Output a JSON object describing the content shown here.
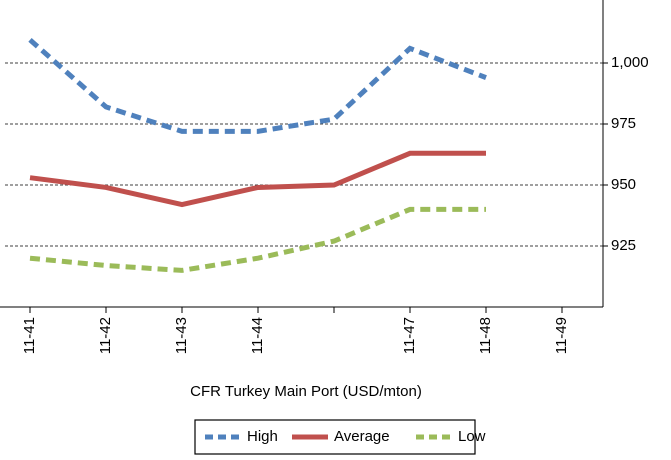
{
  "chart_data": {
    "type": "line",
    "x_label": "CFR Turkey Main Port (USD/mton)",
    "categories": [
      "11-41",
      "11-42",
      "11-43",
      "11-44",
      null,
      "11-47",
      "11-48",
      "11-49"
    ],
    "series": [
      {
        "name": "High",
        "color": "#4f81bd",
        "dashed": true,
        "values": [
          1009.5,
          982,
          972,
          972,
          977,
          1006,
          994,
          null
        ]
      },
      {
        "name": "Average",
        "color": "#c0504d",
        "dashed": false,
        "values": [
          953,
          949,
          942,
          949,
          950,
          963,
          963,
          null
        ]
      },
      {
        "name": "Low",
        "color": "#9bbb59",
        "dashed": true,
        "values": [
          920,
          917,
          915,
          920,
          927,
          940,
          940,
          null
        ]
      }
    ],
    "ylim": [
      900,
      1025
    ],
    "yticks": [
      925,
      950,
      975,
      {
        "value": 1000,
        "label": "1,000"
      }
    ],
    "grid": true,
    "legend": "bottom"
  }
}
